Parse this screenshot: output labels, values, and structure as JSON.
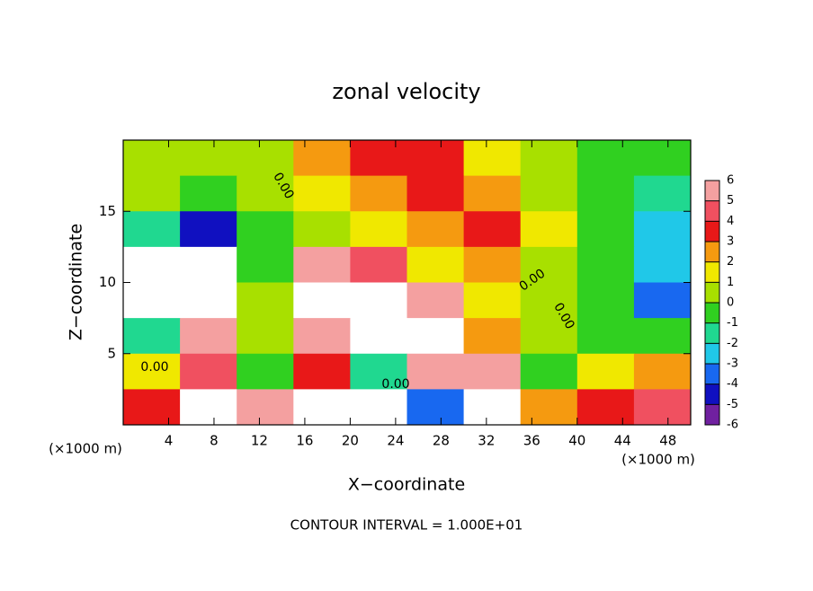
{
  "chart_data": {
    "type": "heatmap",
    "title": "zonal velocity",
    "x_label": "X−coordinate",
    "y_label": "Z−coordinate",
    "x_unit": "(×1000 m)",
    "y_unit": "(×1000 m)",
    "footnote": "CONTOUR INTERVAL = 1.000E+01",
    "contour_labels": [
      "0.00",
      "0.00",
      "0.00",
      "0.00",
      "0.00"
    ],
    "xlim": [
      0,
      50
    ],
    "ylim": [
      0,
      20
    ],
    "xticks": [
      4,
      8,
      12,
      16,
      20,
      24,
      28,
      32,
      36,
      40,
      44,
      48
    ],
    "yticks": [
      5,
      10,
      15
    ],
    "z": [
      [
        0.5,
        0.5,
        0.5,
        2,
        3,
        3,
        1,
        0,
        -1,
        -1
      ],
      [
        0,
        -1,
        0,
        1,
        2,
        3,
        2,
        0,
        -1,
        -2
      ],
      [
        -2,
        -5,
        -1,
        0,
        1,
        2,
        3,
        1,
        -1,
        -3
      ],
      [
        7,
        7,
        -1,
        5,
        4,
        1,
        2,
        0.5,
        -1,
        -3
      ],
      [
        7,
        7,
        0,
        7,
        7,
        5,
        1,
        0,
        -1,
        -4
      ],
      [
        -2,
        6,
        0,
        5,
        7,
        7,
        2,
        0,
        -1,
        -1
      ],
      [
        1,
        4,
        -1,
        3,
        -2,
        6,
        5,
        -1,
        1,
        2
      ],
      [
        3,
        7,
        5,
        7,
        7,
        -4,
        7,
        2,
        3,
        4
      ]
    ],
    "colorbar": {
      "levels": [
        6,
        5,
        4,
        3,
        2,
        1,
        0,
        -1,
        -2,
        -3,
        -4,
        -5,
        -6
      ],
      "colors": [
        "#f4a0a0",
        "#f05060",
        "#e81818",
        "#f59a10",
        "#f0e800",
        "#a8e000",
        "#30d020",
        "#20d890",
        "#20c8e8",
        "#1868f0",
        "#1010c0",
        "#7020a0"
      ]
    }
  }
}
